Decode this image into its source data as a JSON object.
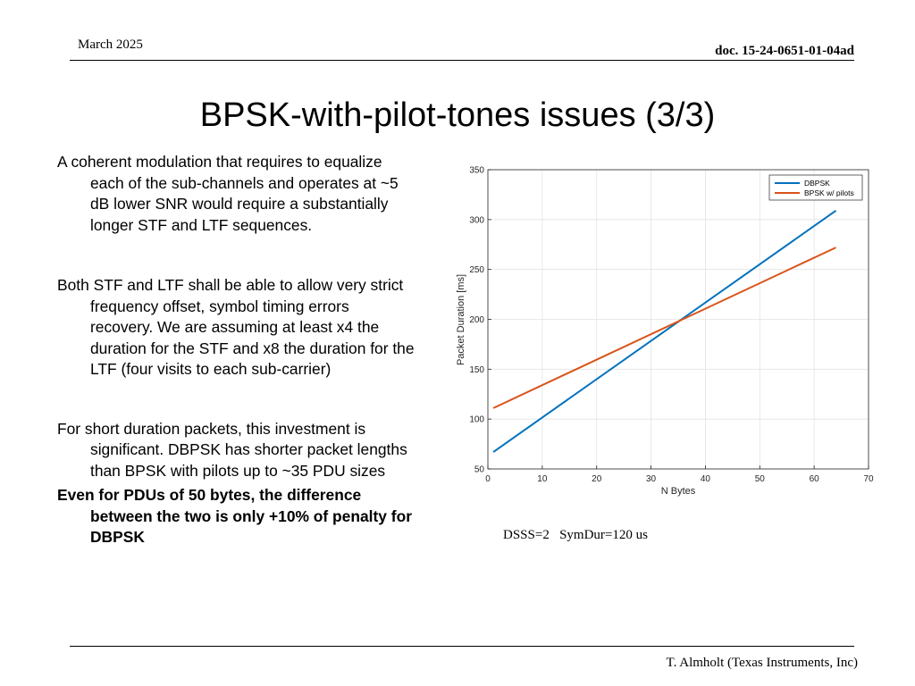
{
  "header": {
    "date": "March 2025",
    "doc_id": "doc. 15-24-0651-01-04ad"
  },
  "title": "BPSK-with-pilot-tones issues (3/3)",
  "paragraphs": [
    "A coherent modulation that requires to equalize each of the sub-channels and operates at ~5 dB lower SNR would require a substantially longer STF and LTF sequences.",
    "Both STF and LTF shall be able to allow very strict frequency offset, symbol timing errors recovery. We are assuming at least x4 the duration for the STF and x8 the duration for the LTF (four visits to each sub-carrier)",
    "For short duration packets, this investment is significant. DBPSK has shorter packet lengths than BPSK with pilots up to ~35 PDU sizes",
    "Even for PDUs of 50 bytes, the difference between the two is only +10% of penalty for DBPSK"
  ],
  "caption": "DSSS=2   SymDur=120 us",
  "footer": {
    "author": "T. Almholt (Texas Instruments, Inc)"
  },
  "chart_data": {
    "type": "line",
    "title": "",
    "xlabel": "N Bytes",
    "ylabel": "Packet Duration [ms]",
    "xlim": [
      0,
      70
    ],
    "ylim": [
      50,
      350
    ],
    "xticks": [
      0,
      10,
      20,
      30,
      40,
      50,
      60,
      70
    ],
    "yticks": [
      50,
      100,
      150,
      200,
      250,
      300,
      350
    ],
    "grid": true,
    "legend_position": "top-right",
    "series": [
      {
        "name": "DBPSK",
        "color": "#0072BD",
        "x": [
          1,
          64
        ],
        "y": [
          67,
          309
        ]
      },
      {
        "name": "BPSK w/ pilots",
        "color": "#D95319",
        "x": [
          1,
          64
        ],
        "y": [
          111,
          272
        ]
      }
    ]
  }
}
